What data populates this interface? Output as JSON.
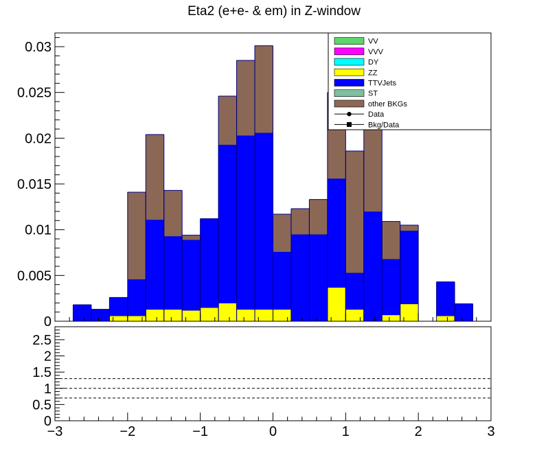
{
  "chart_data": [
    {
      "type": "stacked-histogram",
      "title": "Eta2 (e+e- & em) in Z-window",
      "xlim": [
        -3,
        3
      ],
      "ylim": [
        0,
        0.0315
      ],
      "yticks": [
        {
          "v": 0,
          "label": "0"
        },
        {
          "v": 0.005,
          "label": "0.005"
        },
        {
          "v": 0.01,
          "label": "0.01"
        },
        {
          "v": 0.015,
          "label": "0.015"
        },
        {
          "v": 0.02,
          "label": "0.02"
        },
        {
          "v": 0.025,
          "label": "0.025"
        },
        {
          "v": 0.03,
          "label": "0.03"
        }
      ],
      "bin_edges": [
        -3.0,
        -2.75,
        -2.5,
        -2.25,
        -2.0,
        -1.75,
        -1.5,
        -1.25,
        -1.0,
        -0.75,
        -0.5,
        -0.25,
        0.0,
        0.25,
        0.5,
        0.75,
        1.0,
        1.25,
        1.5,
        1.75,
        2.0,
        2.25,
        2.5,
        2.75,
        3.0
      ],
      "series": [
        {
          "name": "ZZ",
          "color": "#ffff00",
          "values": [
            0,
            0,
            0,
            0.0006,
            0.0006,
            0.0013,
            0.0013,
            0.0012,
            0.0015,
            0.002,
            0.0013,
            0.0013,
            0.0013,
            0,
            0,
            0.0037,
            0.0013,
            0,
            0.0007,
            0.0019,
            0,
            0.0006,
            0,
            0
          ]
        },
        {
          "name": "TTVJets",
          "color": "#0000ff",
          "values": [
            0,
            0.0018,
            0.0013,
            0.002,
            0.004,
            0.0098,
            0.008,
            0.0077,
            0.0097,
            0.0173,
            0.019,
            0.0193,
            0.0063,
            0.0095,
            0.0095,
            0.0119,
            0.004,
            0.012,
            0.0061,
            0.008,
            0,
            0.0037,
            0.0019,
            0
          ]
        },
        {
          "name": "other BKGs",
          "color": "#8b6856",
          "values": [
            0,
            0,
            0,
            0,
            0.0095,
            0.0093,
            0.005,
            0.0005,
            0,
            0.0053,
            0.0082,
            0.0095,
            0.0041,
            0.0028,
            0.0038,
            0.0094,
            0.0133,
            0.0105,
            0.0041,
            0.0006,
            0,
            0,
            0,
            0
          ]
        }
      ],
      "legend": {
        "placement": "top-right",
        "entries": [
          {
            "label": "VV",
            "color": "#5bd66b",
            "kind": "box"
          },
          {
            "label": "VVV",
            "color": "#ff00ff",
            "kind": "box"
          },
          {
            "label": "DY",
            "color": "#00ffff",
            "kind": "box"
          },
          {
            "label": "ZZ",
            "color": "#ffff00",
            "kind": "box"
          },
          {
            "label": "TTVJets",
            "color": "#0000ff",
            "kind": "box"
          },
          {
            "label": "ST",
            "color": "#7fbf9f",
            "kind": "box"
          },
          {
            "label": "other BKGs",
            "color": "#8b6856",
            "kind": "box"
          },
          {
            "label": "Data",
            "color": "#000000",
            "kind": "marker-circle"
          },
          {
            "label": "Bkg/Data",
            "color": "#000000",
            "kind": "marker-square"
          }
        ]
      }
    },
    {
      "type": "ratio",
      "xlim": [
        -3,
        3
      ],
      "ylim": [
        0,
        2.9
      ],
      "yticks": [
        {
          "v": 0,
          "label": "0"
        },
        {
          "v": 0.5,
          "label": "0.5"
        },
        {
          "v": 1,
          "label": "1"
        },
        {
          "v": 1.5,
          "label": "1.5"
        },
        {
          "v": 2,
          "label": "2"
        },
        {
          "v": 2.5,
          "label": "2.5"
        }
      ],
      "xticks": [
        {
          "v": -3,
          "label": "−3"
        },
        {
          "v": -2,
          "label": "−2"
        },
        {
          "v": -1,
          "label": "−1"
        },
        {
          "v": 0,
          "label": "0"
        },
        {
          "v": 1,
          "label": "1"
        },
        {
          "v": 2,
          "label": "2"
        },
        {
          "v": 3,
          "label": "3"
        }
      ],
      "reference_lines": [
        0.7,
        1.0,
        1.3
      ]
    }
  ]
}
